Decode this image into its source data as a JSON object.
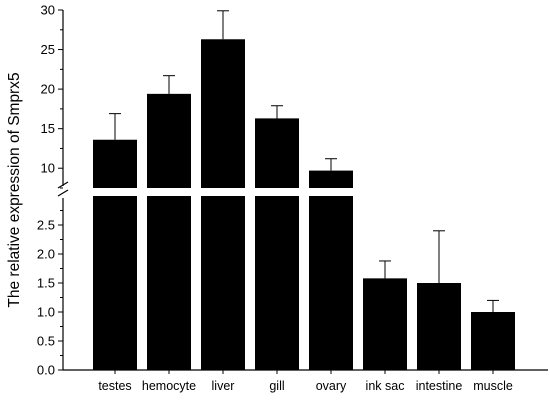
{
  "chart_data": {
    "type": "bar",
    "ylabel": "The relative expression of Smprx5",
    "xlabel": "",
    "axis_break": {
      "lower_range": [
        0,
        3
      ],
      "upper_range": [
        7.5,
        30
      ]
    },
    "yticks_lower": [
      "0.0",
      "0.5",
      "1.0",
      "1.5",
      "2.0",
      "2.5"
    ],
    "yticks_upper": [
      "10",
      "15",
      "20",
      "25",
      "30"
    ],
    "categories": [
      "testes",
      "hemocyte",
      "liver",
      "gill",
      "ovary",
      "ink sac",
      "intestine",
      "muscle"
    ],
    "values": [
      13.6,
      19.4,
      26.3,
      16.3,
      9.7,
      1.58,
      1.5,
      1.0
    ],
    "errors": [
      3.3,
      2.3,
      3.6,
      1.6,
      1.5,
      0.3,
      0.9,
      0.2
    ],
    "grid": false,
    "legend": "none",
    "bar_color": "#000000"
  }
}
